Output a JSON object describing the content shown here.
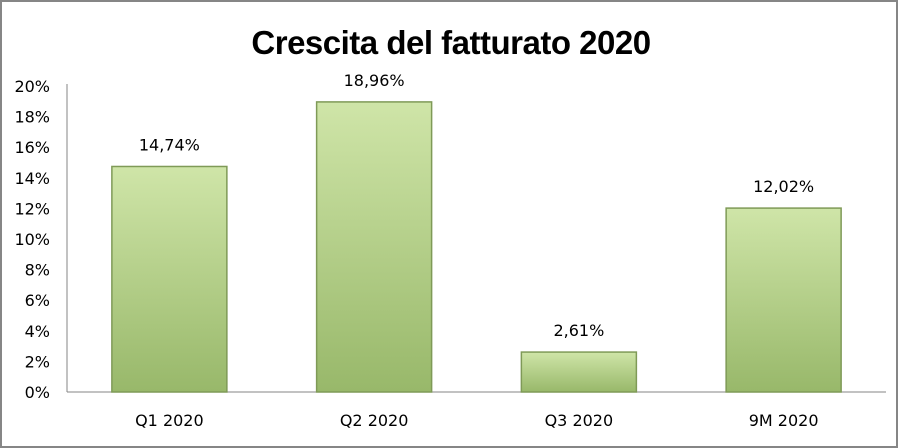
{
  "chart_data": {
    "type": "bar",
    "title": "Crescita del fatturato 2020",
    "categories": [
      "Q1 2020",
      "Q2 2020",
      "Q3 2020",
      "9M 2020"
    ],
    "values": [
      14.74,
      18.96,
      2.61,
      12.02
    ],
    "data_labels": [
      "14,74%",
      "18,96%",
      "2,61%",
      "12,02%"
    ],
    "y_ticks": [
      "0%",
      "2%",
      "4%",
      "6%",
      "8%",
      "10%",
      "12%",
      "14%",
      "16%",
      "18%",
      "20%"
    ],
    "ylim": [
      0,
      20
    ],
    "xlabel": "",
    "ylabel": "",
    "grid": false,
    "legend": "none",
    "colors": {
      "bar_top": "#cfe5a8",
      "bar_bottom": "#98b86a",
      "bar_edge": "#7f9a57",
      "border": "#868686"
    }
  }
}
